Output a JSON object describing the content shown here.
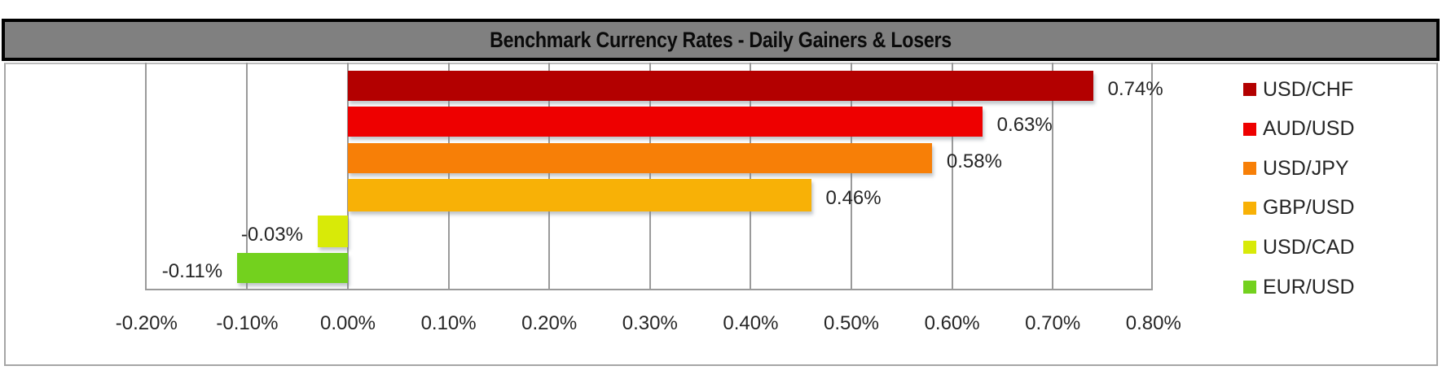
{
  "chart_data": {
    "type": "bar",
    "orientation": "horizontal",
    "title": "Benchmark Currency Rates - Daily Gainers & Losers",
    "xlabel": "",
    "ylabel": "",
    "xlim": [
      -0.2,
      0.8
    ],
    "x_unit": "%",
    "grid": true,
    "legend_position": "right",
    "x_ticks": [
      "-0.20%",
      "-0.10%",
      "0.00%",
      "0.10%",
      "0.20%",
      "0.30%",
      "0.40%",
      "0.50%",
      "0.60%",
      "0.70%",
      "0.80%"
    ],
    "categories": [
      "USD/CHF",
      "AUD/USD",
      "USD/JPY",
      "GBP/USD",
      "USD/CAD",
      "EUR/USD"
    ],
    "values": [
      0.74,
      0.63,
      0.58,
      0.46,
      -0.03,
      -0.11
    ],
    "labels": [
      "0.74%",
      "0.63%",
      "0.58%",
      "0.46%",
      "-0.03%",
      "-0.11%"
    ],
    "colors": [
      "#B30000",
      "#EE0000",
      "#F77F07",
      "#F8B106",
      "#D8EA08",
      "#73D11E"
    ]
  },
  "title": "Benchmark Currency Rates - Daily Gainers & Losers",
  "legend": [
    {
      "label": "USD/CHF",
      "color": "#B30000"
    },
    {
      "label": "AUD/USD",
      "color": "#EE0000"
    },
    {
      "label": "USD/JPY",
      "color": "#F77F07"
    },
    {
      "label": "GBP/USD",
      "color": "#F8B106"
    },
    {
      "label": "USD/CAD",
      "color": "#D8EA08"
    },
    {
      "label": "EUR/USD",
      "color": "#73D11E"
    }
  ],
  "axis": {
    "ticks": [
      "-0.20%",
      "-0.10%",
      "0.00%",
      "0.10%",
      "0.20%",
      "0.30%",
      "0.40%",
      "0.50%",
      "0.60%",
      "0.70%",
      "0.80%"
    ]
  },
  "bars": [
    {
      "pair": "USD/CHF",
      "value": 0.74,
      "label": "0.74%",
      "color": "#B30000"
    },
    {
      "pair": "AUD/USD",
      "value": 0.63,
      "label": "0.63%",
      "color": "#EE0000"
    },
    {
      "pair": "USD/JPY",
      "value": 0.58,
      "label": "0.58%",
      "color": "#F77F07"
    },
    {
      "pair": "GBP/USD",
      "value": 0.46,
      "label": "0.46%",
      "color": "#F8B106"
    },
    {
      "pair": "USD/CAD",
      "value": -0.03,
      "label": "-0.03%",
      "color": "#D8EA08"
    },
    {
      "pair": "EUR/USD",
      "value": -0.11,
      "label": "-0.11%",
      "color": "#73D11E"
    }
  ]
}
